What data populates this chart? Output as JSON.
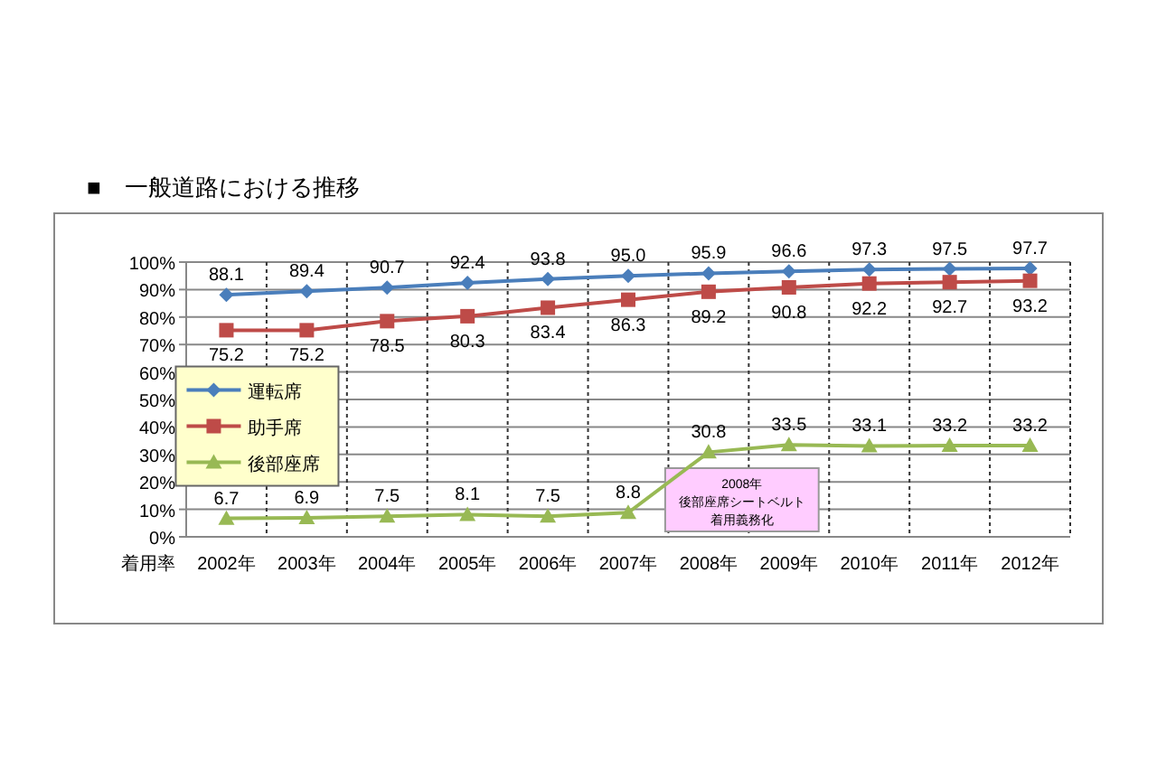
{
  "chart_data": {
    "type": "line",
    "title": "■　一般道路における推移",
    "xlabel": "着用率",
    "categories": [
      "2002年",
      "2003年",
      "2004年",
      "2005年",
      "2006年",
      "2007年",
      "2008年",
      "2009年",
      "2010年",
      "2011年",
      "2012年"
    ],
    "series": [
      {
        "name": "運転席",
        "color": "#4a7ebb",
        "marker": "diamond",
        "values": [
          88.1,
          89.4,
          90.7,
          92.4,
          93.8,
          95.0,
          95.9,
          96.6,
          97.3,
          97.5,
          97.7
        ],
        "value_labels": [
          "88.1",
          "89.4",
          "90.7",
          "92.4",
          "93.8",
          "95.0",
          "95.9",
          "96.6",
          "97.3",
          "97.5",
          "97.7"
        ]
      },
      {
        "name": "助手席",
        "color": "#be4b48",
        "marker": "square",
        "values": [
          75.2,
          75.2,
          78.5,
          80.3,
          83.4,
          86.3,
          89.2,
          90.8,
          92.2,
          92.7,
          93.2
        ],
        "value_labels": [
          "75.2",
          "75.2",
          "78.5",
          "80.3",
          "83.4",
          "86.3",
          "89.2",
          "90.8",
          "92.2",
          "92.7",
          "93.2"
        ]
      },
      {
        "name": "後部座席",
        "color": "#98b954",
        "marker": "triangle",
        "values": [
          6.7,
          6.9,
          7.5,
          8.1,
          7.5,
          8.8,
          30.8,
          33.5,
          33.1,
          33.2,
          33.2
        ],
        "value_labels": [
          "6.7",
          "6.9",
          "7.5",
          "8.1",
          "7.5",
          "8.8",
          "30.8",
          "33.5",
          "33.1",
          "33.2",
          "33.2"
        ]
      }
    ],
    "ylim": [
      0,
      100
    ],
    "yticks": [
      {
        "value": 0,
        "label": "0%"
      },
      {
        "value": 10,
        "label": "10%"
      },
      {
        "value": 20,
        "label": "20%"
      },
      {
        "value": 30,
        "label": "30%"
      },
      {
        "value": 40,
        "label": "40%"
      },
      {
        "value": 50,
        "label": "50%"
      },
      {
        "value": 60,
        "label": "60%"
      },
      {
        "value": 70,
        "label": "70%"
      },
      {
        "value": 80,
        "label": "80%"
      },
      {
        "value": 90,
        "label": "90%"
      },
      {
        "value": 100,
        "label": "100%"
      }
    ],
    "grid": true,
    "legend": "left",
    "annotations": [
      "2008年",
      "後部座席シートベルト",
      "着用義務化"
    ]
  }
}
